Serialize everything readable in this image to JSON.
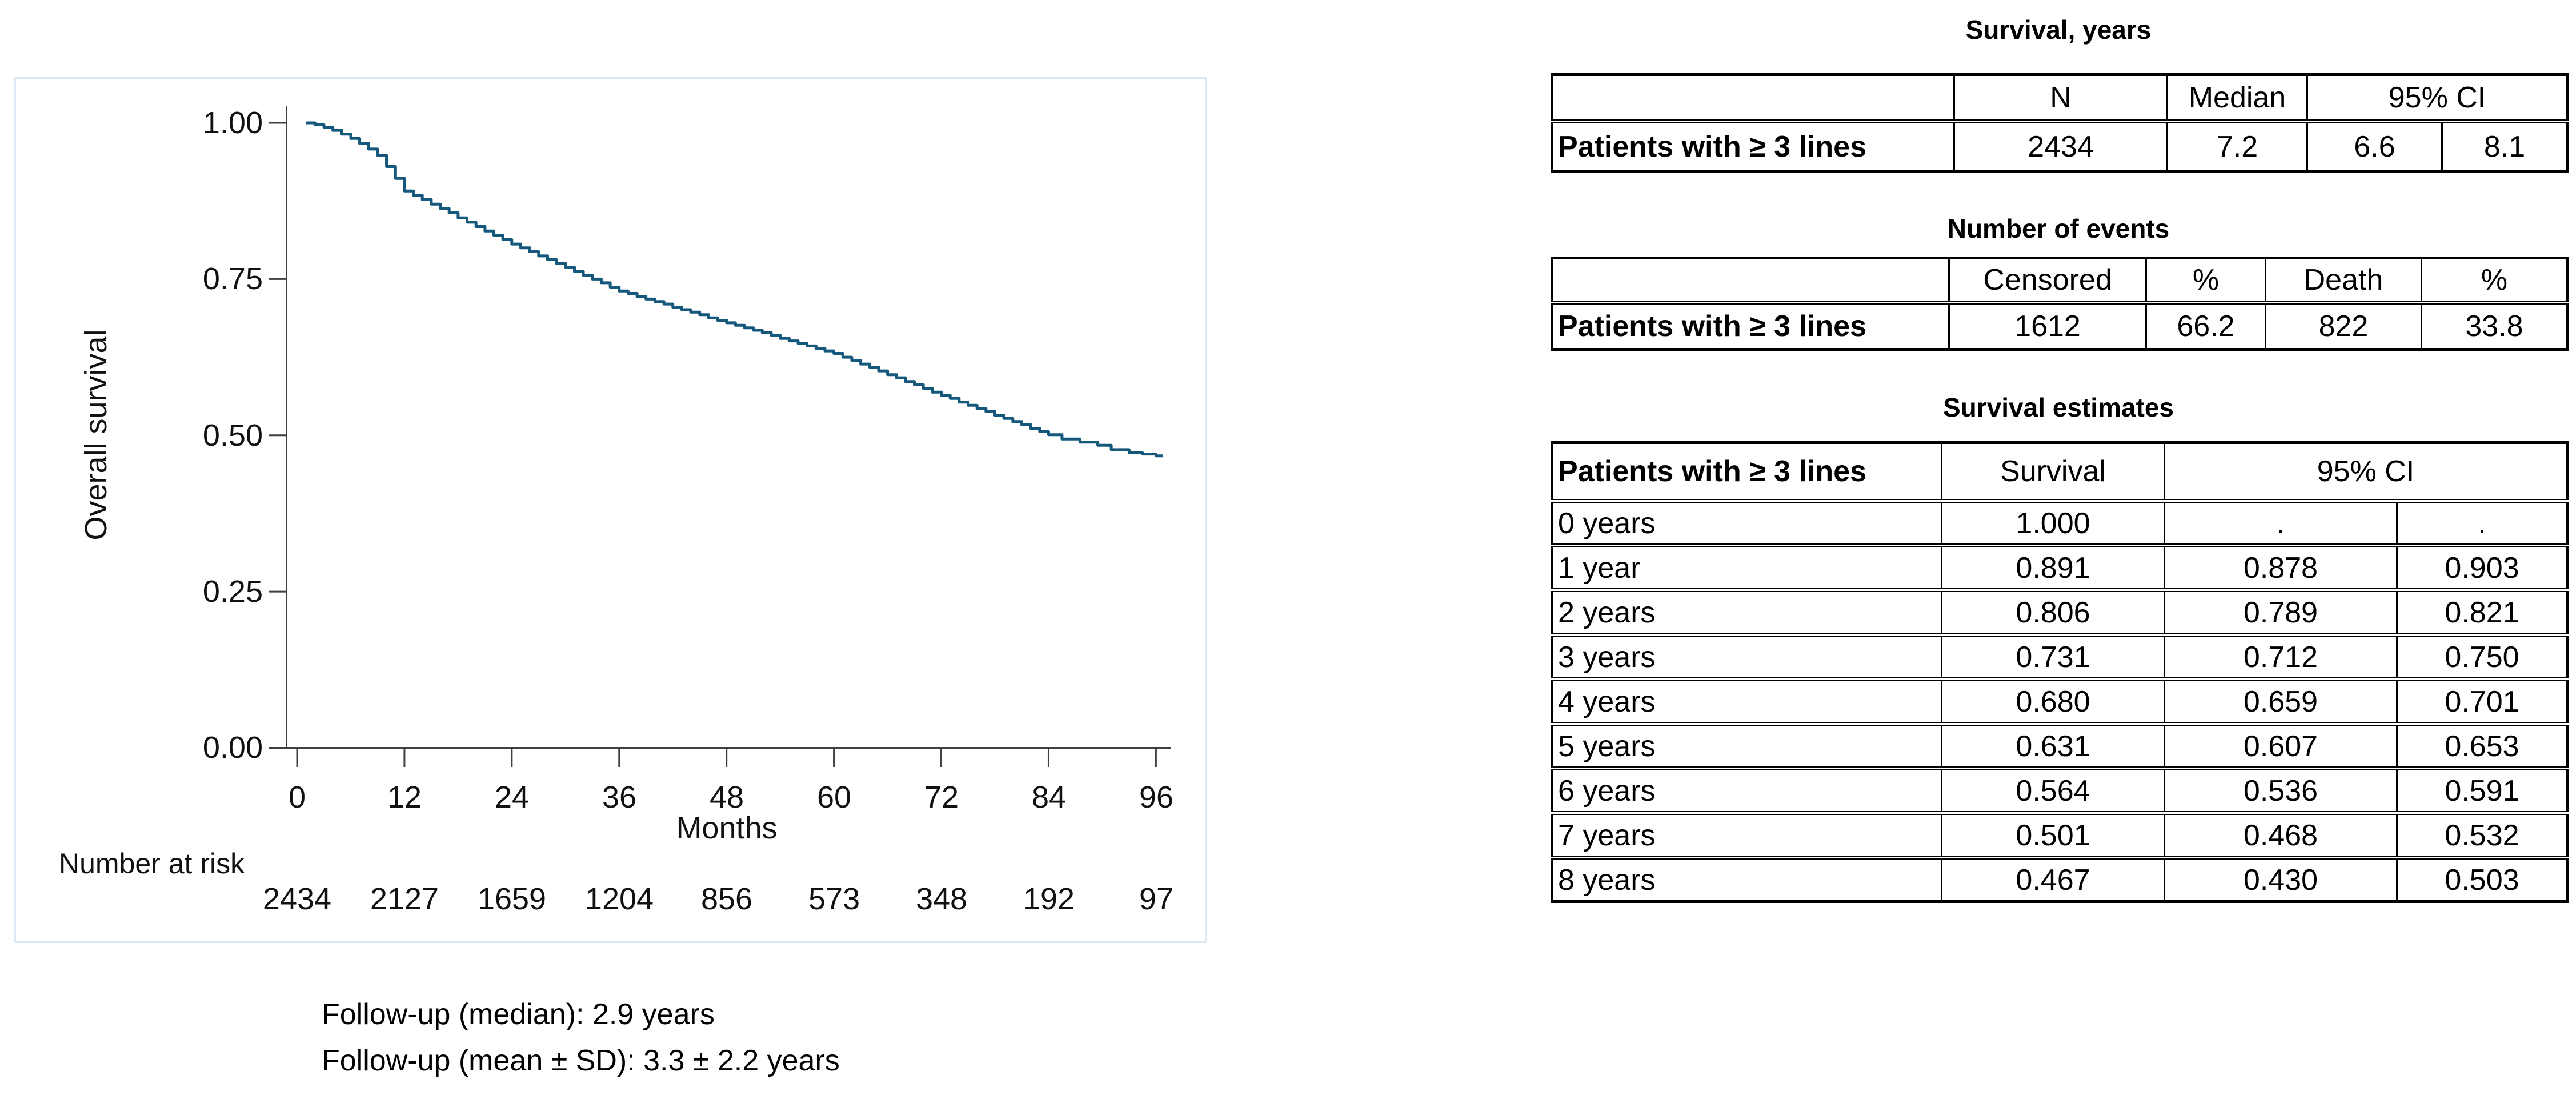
{
  "km_plot": {
    "y_axis": {
      "label": "Overall survival",
      "tick_labels": [
        "1.00",
        "0.75",
        "0.50",
        "0.25",
        "0.00"
      ]
    },
    "x_axis": {
      "label": "Months",
      "tick_labels": [
        "0",
        "12",
        "24",
        "36",
        "48",
        "60",
        "72",
        "84",
        "96"
      ]
    },
    "number_at_risk": {
      "label": "Number at risk",
      "values": [
        "2434",
        "2127",
        "1659",
        "1204",
        "856",
        "573",
        "348",
        "192",
        "97"
      ]
    },
    "footnotes": [
      "Follow-up (median): 2.9 years",
      "Follow-up (mean ± SD): 3.3 ± 2.2 years"
    ]
  },
  "tables": {
    "survival_years": {
      "title": "Survival, years",
      "headers": [
        "",
        "N",
        "Median",
        "95% CI"
      ],
      "row": {
        "label": "Patients with ≥ 3 lines",
        "n": "2434",
        "median": "7.2",
        "ci_low": "6.6",
        "ci_high": "8.1"
      }
    },
    "number_of_events": {
      "title": "Number of events",
      "headers": [
        "",
        "Censored",
        "%",
        "Death",
        "%"
      ],
      "row": {
        "label": "Patients with ≥ 3 lines",
        "censored": "1612",
        "censored_pct": "66.2",
        "death": "822",
        "death_pct": "33.8"
      }
    },
    "survival_estimates": {
      "title": "Survival estimates",
      "headers": [
        "Patients with ≥ 3 lines",
        "Survival",
        "95% CI"
      ],
      "rows": [
        {
          "label": "0 years",
          "survival": "1.000",
          "ci_low": ".",
          "ci_high": "."
        },
        {
          "label": "1 year",
          "survival": "0.891",
          "ci_low": "0.878",
          "ci_high": "0.903"
        },
        {
          "label": "2 years",
          "survival": "0.806",
          "ci_low": "0.789",
          "ci_high": "0.821"
        },
        {
          "label": "3 years",
          "survival": "0.731",
          "ci_low": "0.712",
          "ci_high": "0.750"
        },
        {
          "label": "4 years",
          "survival": "0.680",
          "ci_low": "0.659",
          "ci_high": "0.701"
        },
        {
          "label": "5 years",
          "survival": "0.631",
          "ci_low": "0.607",
          "ci_high": "0.653"
        },
        {
          "label": "6 years",
          "survival": "0.564",
          "ci_low": "0.536",
          "ci_high": "0.591"
        },
        {
          "label": "7 years",
          "survival": "0.501",
          "ci_low": "0.468",
          "ci_high": "0.532"
        },
        {
          "label": "8 years",
          "survival": "0.467",
          "ci_low": "0.430",
          "ci_high": "0.503"
        }
      ]
    }
  },
  "chart_data": {
    "type": "line",
    "variant": "kaplan_meier_step",
    "title": "",
    "xlabel": "Months",
    "ylabel": "Overall survival",
    "xlim": [
      0,
      98
    ],
    "ylim": [
      0,
      1.0
    ],
    "x_ticks": [
      0,
      12,
      24,
      36,
      48,
      60,
      72,
      84,
      96
    ],
    "y_ticks": [
      0,
      0.25,
      0.5,
      0.75,
      1.0
    ],
    "grid": false,
    "legend": false,
    "axis_color": "#3f3f3f",
    "number_at_risk": [
      2434,
      2127,
      1659,
      1204,
      856,
      573,
      348,
      192,
      97
    ],
    "followup_median_years": 2.9,
    "followup_mean_years": 3.3,
    "followup_sd_years": 2.2,
    "series": [
      {
        "name": "Patients with ≥ 3 lines",
        "color": "#15587C",
        "n": 2434,
        "median_survival_years": 7.2,
        "median_ci": [
          6.6,
          8.1
        ],
        "events_censored": 1612,
        "events_censored_pct": 66.2,
        "events_death": 822,
        "events_death_pct": 33.8,
        "yearly_survival": [
          1.0,
          0.891,
          0.806,
          0.731,
          0.68,
          0.631,
          0.564,
          0.501,
          0.467
        ],
        "points": [
          [
            1,
            1.0
          ],
          [
            2,
            0.997
          ],
          [
            3,
            0.993
          ],
          [
            4,
            0.988
          ],
          [
            5,
            0.982
          ],
          [
            6,
            0.975
          ],
          [
            7,
            0.967
          ],
          [
            8,
            0.958
          ],
          [
            9,
            0.948
          ],
          [
            10,
            0.93
          ],
          [
            11,
            0.911
          ],
          [
            12,
            0.891
          ],
          [
            13,
            0.884
          ],
          [
            14,
            0.877
          ],
          [
            15,
            0.87
          ],
          [
            16,
            0.863
          ],
          [
            17,
            0.856
          ],
          [
            18,
            0.848
          ],
          [
            19,
            0.841
          ],
          [
            20,
            0.834
          ],
          [
            21,
            0.827
          ],
          [
            22,
            0.82
          ],
          [
            23,
            0.813
          ],
          [
            24,
            0.806
          ],
          [
            25,
            0.8
          ],
          [
            26,
            0.794
          ],
          [
            27,
            0.787
          ],
          [
            28,
            0.781
          ],
          [
            29,
            0.775
          ],
          [
            30,
            0.769
          ],
          [
            31,
            0.762
          ],
          [
            32,
            0.756
          ],
          [
            33,
            0.75
          ],
          [
            34,
            0.744
          ],
          [
            35,
            0.737
          ],
          [
            36,
            0.731
          ],
          [
            37,
            0.727
          ],
          [
            38,
            0.722
          ],
          [
            39,
            0.718
          ],
          [
            40,
            0.714
          ],
          [
            41,
            0.71
          ],
          [
            42,
            0.705
          ],
          [
            43,
            0.701
          ],
          [
            44,
            0.697
          ],
          [
            45,
            0.693
          ],
          [
            46,
            0.688
          ],
          [
            47,
            0.684
          ],
          [
            48,
            0.68
          ],
          [
            49,
            0.676
          ],
          [
            50,
            0.672
          ],
          [
            51,
            0.668
          ],
          [
            52,
            0.664
          ],
          [
            53,
            0.66
          ],
          [
            54,
            0.655
          ],
          [
            55,
            0.651
          ],
          [
            56,
            0.647
          ],
          [
            57,
            0.643
          ],
          [
            58,
            0.639
          ],
          [
            59,
            0.635
          ],
          [
            60,
            0.631
          ],
          [
            61,
            0.625
          ],
          [
            62,
            0.62
          ],
          [
            63,
            0.614
          ],
          [
            64,
            0.609
          ],
          [
            65,
            0.603
          ],
          [
            66,
            0.597
          ],
          [
            67,
            0.592
          ],
          [
            68,
            0.586
          ],
          [
            69,
            0.581
          ],
          [
            70,
            0.575
          ],
          [
            71,
            0.569
          ],
          [
            72,
            0.564
          ],
          [
            73,
            0.559
          ],
          [
            74,
            0.553
          ],
          [
            75,
            0.548
          ],
          [
            76,
            0.543
          ],
          [
            77,
            0.538
          ],
          [
            78,
            0.532
          ],
          [
            79,
            0.527
          ],
          [
            80,
            0.522
          ],
          [
            81,
            0.517
          ],
          [
            82,
            0.511
          ],
          [
            83,
            0.506
          ],
          [
            84,
            0.501
          ],
          [
            85.5,
            0.494
          ],
          [
            87.5,
            0.489
          ],
          [
            89.5,
            0.484
          ],
          [
            91,
            0.477
          ],
          [
            93,
            0.472
          ],
          [
            94.5,
            0.47
          ],
          [
            96,
            0.467
          ],
          [
            96.8,
            0.467
          ]
        ]
      }
    ]
  }
}
